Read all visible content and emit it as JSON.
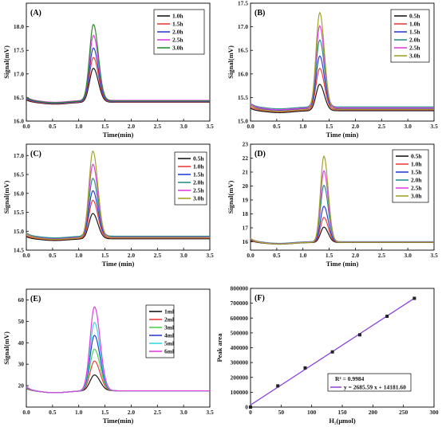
{
  "chart_data": [
    {
      "panel": "(A)",
      "type": "line",
      "xlabel": "Time(min)",
      "ylabel": "Signal(mV)",
      "xlim": [
        0.0,
        3.5
      ],
      "ylim": [
        16.0,
        18.5
      ],
      "xticks": [
        "0.0",
        "0.5",
        "1.0",
        "1.5",
        "2.0",
        "2.5",
        "3.0",
        "3.5"
      ],
      "yticks": [
        "16.0",
        "16.5",
        "17.0",
        "17.5",
        "18.0"
      ],
      "legend_position": "top-right",
      "peak_time": 1.28,
      "peak_width": 0.075,
      "series": [
        {
          "name": "1.0h",
          "color": "#1a1a1a",
          "baseline": 16.4,
          "peak": 17.12
        },
        {
          "name": "1.5h",
          "color": "#e8413c",
          "baseline": 16.41,
          "peak": 17.35
        },
        {
          "name": "2.0h",
          "color": "#2b3fd6",
          "baseline": 16.42,
          "peak": 17.55
        },
        {
          "name": "2.5h",
          "color": "#e040e0",
          "baseline": 16.44,
          "peak": 17.82
        },
        {
          "name": "3.0h",
          "color": "#2f8a2f",
          "baseline": 16.43,
          "peak": 18.05
        }
      ]
    },
    {
      "panel": "(B)",
      "type": "line",
      "xlabel": "Time (min)",
      "ylabel": "Signal(mV)",
      "xlim": [
        0.0,
        3.5
      ],
      "ylim": [
        15.0,
        17.5
      ],
      "xticks": [
        "0.0",
        "0.5",
        "1.0",
        "1.5",
        "2.0",
        "2.5",
        "3.0",
        "3.5"
      ],
      "yticks": [
        "15.0",
        "15.5",
        "16.0",
        "16.5",
        "17.0",
        "17.5"
      ],
      "legend_position": "top-right",
      "peak_time": 1.32,
      "peak_width": 0.07,
      "series": [
        {
          "name": "0.5h",
          "color": "#1a1a1a",
          "baseline": 15.22,
          "peak": 15.78
        },
        {
          "name": "1.0h",
          "color": "#e8413c",
          "baseline": 15.24,
          "peak": 16.12
        },
        {
          "name": "1.5h",
          "color": "#2b3fd6",
          "baseline": 15.27,
          "peak": 16.38
        },
        {
          "name": "2.0h",
          "color": "#2a8f8f",
          "baseline": 15.3,
          "peak": 16.72
        },
        {
          "name": "2.5h",
          "color": "#e040e0",
          "baseline": 15.28,
          "peak": 17.02
        },
        {
          "name": "3.0h",
          "color": "#a3a32a",
          "baseline": 15.25,
          "peak": 17.3
        }
      ]
    },
    {
      "panel": "(C)",
      "type": "line",
      "xlabel": "Time (min)",
      "ylabel": "Signal(mV)",
      "xlim": [
        0.0,
        3.5
      ],
      "ylim": [
        14.5,
        17.3
      ],
      "xticks": [
        "0.0",
        "0.5",
        "1.0",
        "1.5",
        "2.0",
        "2.5",
        "3.0",
        "3.5"
      ],
      "yticks": [
        "14.5",
        "15.0",
        "15.5",
        "16.0",
        "16.5",
        "17.0"
      ],
      "legend_position": "top-right",
      "peak_time": 1.27,
      "peak_width": 0.075,
      "series": [
        {
          "name": "0.5h",
          "color": "#1a1a1a",
          "baseline": 14.8,
          "peak": 15.47
        },
        {
          "name": "1.0h",
          "color": "#e8413c",
          "baseline": 14.82,
          "peak": 15.82
        },
        {
          "name": "1.5h",
          "color": "#2b3fd6",
          "baseline": 14.85,
          "peak": 16.07
        },
        {
          "name": "2.0h",
          "color": "#2a8f8f",
          "baseline": 14.87,
          "peak": 16.4
        },
        {
          "name": "2.5h",
          "color": "#e040e0",
          "baseline": 14.84,
          "peak": 16.77
        },
        {
          "name": "3.0h",
          "color": "#a3a32a",
          "baseline": 14.83,
          "peak": 17.12
        }
      ]
    },
    {
      "panel": "(D)",
      "type": "line",
      "xlabel": "Time (min)",
      "ylabel": "Signal(mV)",
      "xlim": [
        0.0,
        3.5
      ],
      "ylim": [
        15.4,
        23.0
      ],
      "xticks": [
        "0.0",
        "0.5",
        "1.0",
        "1.5",
        "2.0",
        "2.5",
        "3.0",
        "3.5"
      ],
      "yticks": [
        "16",
        "17",
        "18",
        "19",
        "20",
        "21",
        "22",
        "23"
      ],
      "legend_position": "top-right",
      "peak_time": 1.4,
      "peak_width": 0.065,
      "series": [
        {
          "name": "0.5h",
          "color": "#1a1a1a",
          "baseline": 15.95,
          "peak": 17.05
        },
        {
          "name": "1.0h",
          "color": "#e8413c",
          "baseline": 15.97,
          "peak": 17.75
        },
        {
          "name": "1.5h",
          "color": "#2b3fd6",
          "baseline": 15.99,
          "peak": 18.55
        },
        {
          "name": "2.0h",
          "color": "#2a8f8f",
          "baseline": 16.01,
          "peak": 20.05
        },
        {
          "name": "2.5h",
          "color": "#e040e0",
          "baseline": 15.98,
          "peak": 21.1
        },
        {
          "name": "3.0h",
          "color": "#a3a32a",
          "baseline": 15.96,
          "peak": 22.15
        }
      ]
    },
    {
      "panel": "(E)",
      "type": "line",
      "xlabel": "Time(min)",
      "ylabel": "Signal(mV)",
      "xlim": [
        0.0,
        3.5
      ],
      "ylim": [
        10,
        65
      ],
      "xticks": [
        "0.0",
        "0.5",
        "1.0",
        "1.5",
        "2.0",
        "2.5",
        "3.0",
        "3.5"
      ],
      "yticks": [
        "20",
        "30",
        "40",
        "50",
        "60"
      ],
      "legend_position": "top-right",
      "peak_time": 1.3,
      "peak_width": 0.085,
      "series": [
        {
          "name": "1ml",
          "color": "#1a1a1a",
          "baseline": 17.6,
          "peak": 25.0
        },
        {
          "name": "2ml",
          "color": "#e8413c",
          "baseline": 17.6,
          "peak": 31.5
        },
        {
          "name": "3ml",
          "color": "#4fd14f",
          "baseline": 17.6,
          "peak": 37.0
        },
        {
          "name": "4ml",
          "color": "#2b3fd6",
          "baseline": 17.6,
          "peak": 43.5
        },
        {
          "name": "5ml",
          "color": "#38d6e8",
          "baseline": 17.6,
          "peak": 49.5
        },
        {
          "name": "6ml",
          "color": "#e040e0",
          "baseline": 17.6,
          "peak": 56.8
        }
      ]
    },
    {
      "panel": "(F)",
      "type": "scatter",
      "xlabel": "H₂(μmol)",
      "ylabel": "Peak area",
      "xlim": [
        0,
        300
      ],
      "ylim": [
        0,
        800000
      ],
      "xticks": [
        "0",
        "50",
        "100",
        "150",
        "200",
        "250",
        "300"
      ],
      "yticks": [
        "0",
        "100000",
        "200000",
        "300000",
        "400000",
        "500000",
        "600000",
        "700000",
        "800000"
      ],
      "points": {
        "x": [
          0,
          44.6,
          89.3,
          133.9,
          178.6,
          223.2,
          267.9
        ],
        "y": [
          0,
          143000,
          264000,
          372000,
          487000,
          612000,
          733000
        ]
      },
      "fit": {
        "slope": 2685.59,
        "intercept": 14181.6,
        "color": "#8a3fd6"
      },
      "r2_text": "R² = 0.9984",
      "equation_text": "y = 2685.59 x + 14181.60"
    }
  ]
}
